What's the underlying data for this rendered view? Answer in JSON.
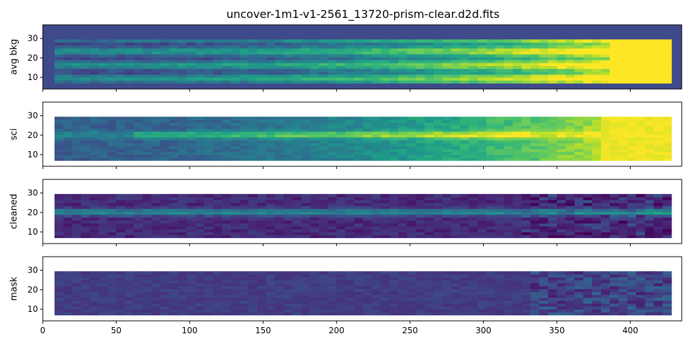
{
  "figure": {
    "title": "uncover-1m1-v1-2561_13720-prism-clear.d2d.fits"
  },
  "chart_data": [
    {
      "type": "heatmap",
      "ylabel": "avg bkg",
      "x_range": [
        0,
        435
      ],
      "y_range": [
        4,
        37
      ],
      "x_ticks": [
        0,
        50,
        100,
        150,
        200,
        250,
        300,
        350,
        400
      ],
      "y_ticks": [
        10,
        20,
        30
      ],
      "colormap": "viridis",
      "missing_color": "#3b518b",
      "trace_row": null,
      "background": "#3f4a8a"
    },
    {
      "type": "heatmap",
      "ylabel": "sci",
      "x_range": [
        0,
        435
      ],
      "y_range": [
        4,
        37
      ],
      "x_ticks": [
        0,
        50,
        100,
        150,
        200,
        250,
        300,
        350,
        400
      ],
      "y_ticks": [
        10,
        20,
        30
      ],
      "colormap": "viridis",
      "missing_color": "#ffffff",
      "trace_row": 19.5,
      "background": "#ffffff"
    },
    {
      "type": "heatmap",
      "ylabel": "cleaned",
      "x_range": [
        0,
        435
      ],
      "y_range": [
        4,
        37
      ],
      "x_ticks": [
        0,
        50,
        100,
        150,
        200,
        250,
        300,
        350,
        400
      ],
      "y_ticks": [
        10,
        20,
        30
      ],
      "colormap": "viridis",
      "missing_color": "#ffffff",
      "trace_row": 19.5,
      "background": "#ffffff"
    },
    {
      "type": "heatmap",
      "ylabel": "mask",
      "x_range": [
        0,
        435
      ],
      "y_range": [
        4,
        37
      ],
      "x_ticks": [
        0,
        50,
        100,
        150,
        200,
        250,
        300,
        350,
        400
      ],
      "y_ticks": [
        10,
        20,
        30
      ],
      "colormap": "viridis",
      "missing_color": "#ffffff",
      "trace_row": null,
      "background": "#ffffff"
    }
  ],
  "colors": {
    "viridis_dark": "#440154",
    "viridis_blue": "#3b528b",
    "viridis_teal": "#21918c",
    "viridis_green": "#5ec962",
    "viridis_yellow": "#fde725"
  }
}
